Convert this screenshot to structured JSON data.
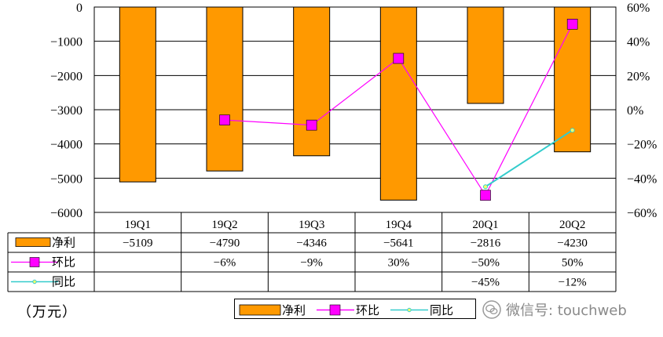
{
  "chart_data": {
    "type": "bar",
    "categories": [
      "19Q1",
      "19Q2",
      "19Q3",
      "19Q4",
      "20Q1",
      "20Q2"
    ],
    "left_axis": {
      "ylim": [
        -6000,
        0
      ],
      "ticks": [
        0,
        -1000,
        -2000,
        -3000,
        -4000,
        -5000,
        -6000
      ]
    },
    "right_axis": {
      "ylim": [
        -60,
        60
      ],
      "ticks": [
        "60%",
        "40%",
        "20%",
        "0%",
        "−20%",
        "−40%",
        "−60%"
      ]
    },
    "series": [
      {
        "name": "净利",
        "kind": "bar",
        "axis": "left",
        "color": "#FF9900",
        "values": [
          -5109,
          -4790,
          -4346,
          -5641,
          -2816,
          -4230
        ],
        "labels": [
          "−5109",
          "−4790",
          "−4346",
          "−5641",
          "−2816",
          "−4230"
        ]
      },
      {
        "name": "环比",
        "kind": "line",
        "axis": "right",
        "color": "#FF00FF",
        "values": [
          null,
          -6,
          -9,
          30,
          -50,
          50
        ],
        "labels": [
          "",
          "−6%",
          "−9%",
          "30%",
          "−50%",
          "50%"
        ]
      },
      {
        "name": "同比",
        "kind": "line",
        "axis": "right",
        "color": "#33CCCC",
        "values": [
          null,
          null,
          null,
          null,
          -45,
          -12
        ],
        "labels": [
          "",
          "",
          "",
          "",
          "−45%",
          "−12%"
        ]
      }
    ],
    "grid": true,
    "legend": "bottom"
  },
  "unit_label": "（万元）",
  "watermark_text": "微信号: touchweb",
  "icons": {
    "watermark": "wechat-icon"
  }
}
